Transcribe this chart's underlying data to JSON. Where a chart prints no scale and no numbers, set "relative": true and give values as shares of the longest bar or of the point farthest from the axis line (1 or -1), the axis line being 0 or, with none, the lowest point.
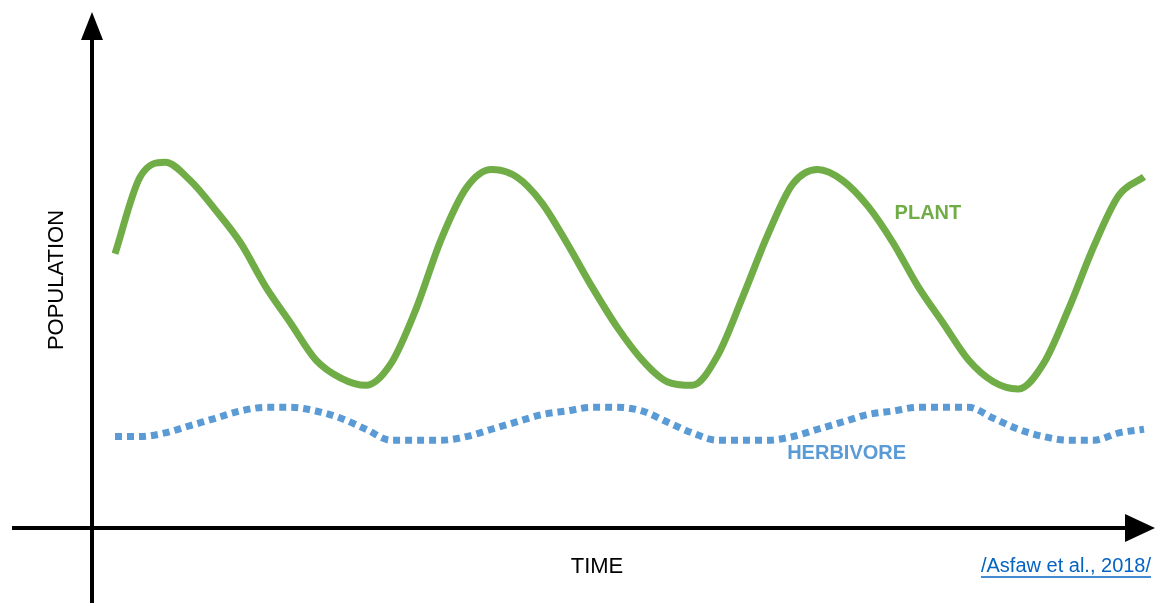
{
  "chart_data": {
    "type": "line",
    "relative": true,
    "xlabel": "TIME",
    "ylabel": "POPULATION",
    "annotations": [
      "/Asfaw et al., 2018/"
    ],
    "categories": [
      null,
      null,
      null,
      null,
      null,
      null,
      null,
      null,
      null,
      null,
      null,
      null,
      null,
      null,
      null,
      null,
      null,
      null,
      null,
      null,
      null,
      null,
      null,
      null,
      null,
      null,
      null,
      null,
      null,
      null,
      null,
      null,
      null,
      null,
      null,
      null,
      null,
      null,
      null,
      null,
      null,
      null
    ],
    "legend": false,
    "marker": "none",
    "series": [
      {
        "name": "PLANT",
        "color": "#70ad47",
        "line_style": "solid",
        "values": [
          0.75,
          0.96,
          1,
          0.95,
          0.87,
          0.78,
          0.66,
          0.56,
          0.46,
          0.41,
          0.39,
          0.45,
          0.6,
          0.79,
          0.93,
          0.98,
          0.96,
          0.89,
          0.78,
          0.66,
          0.55,
          0.46,
          0.4,
          0.39,
          0.47,
          0.63,
          0.8,
          0.94,
          0.98,
          0.95,
          0.88,
          0.78,
          0.66,
          0.56,
          0.46,
          0.4,
          0.38,
          0.45,
          0.6,
          0.77,
          0.91,
          0.96
        ]
      },
      {
        "name": "HERBIVORE",
        "color": "#5b9bd5",
        "line_style": "dotted",
        "values": [
          0.25,
          0.25,
          0.26,
          0.28,
          0.3,
          0.32,
          0.33,
          0.33,
          0.32,
          0.3,
          0.27,
          0.24,
          0.24,
          0.24,
          0.25,
          0.27,
          0.29,
          0.31,
          0.32,
          0.33,
          0.33,
          0.32,
          0.29,
          0.26,
          0.24,
          0.24,
          0.24,
          0.25,
          0.27,
          0.29,
          0.31,
          0.32,
          0.33,
          0.33,
          0.33,
          0.3,
          0.27,
          0.25,
          0.24,
          0.24,
          0.26,
          0.27
        ]
      }
    ]
  }
}
